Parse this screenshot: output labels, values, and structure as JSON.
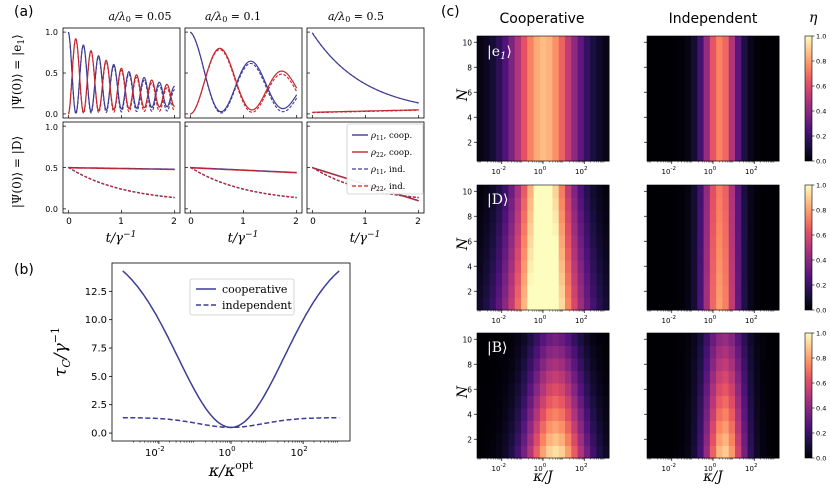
{
  "colors": {
    "cooperative": "#3f3c95",
    "pop22": "#c2262e",
    "axis": "#000000",
    "colormap": [
      "#000004",
      "#1c1044",
      "#4f127b",
      "#812581",
      "#b5367a",
      "#e55064",
      "#fb8761",
      "#fec287",
      "#fcfdbf"
    ]
  },
  "panel_labels": {
    "a": "(a)",
    "b": "(b)",
    "c": "(c)"
  },
  "chart_data": [
    {
      "id": "a",
      "type": "line",
      "columns": [
        {
          "title": "a/λ0 = 0.05",
          "title_italic": "a/λ",
          "title_sub": "0",
          "title_rest": " = 0.05"
        },
        {
          "title": "a/λ0 = 0.1",
          "title_italic": "a/λ",
          "title_sub": "0",
          "title_rest": " = 0.1"
        },
        {
          "title": "a/λ0 = 0.5",
          "title_italic": "a/λ",
          "title_sub": "0",
          "title_rest": " = 0.5"
        }
      ],
      "rows": [
        {
          "ylabel": "|Ψ(0)⟩ = |e1⟩",
          "ylabel_main": "|Ψ(0)⟩ = |e",
          "ylabel_sub": "1",
          "ylabel_end": "⟩"
        },
        {
          "ylabel": "|Ψ(0)⟩ = |D⟩",
          "ylabel_main": "|Ψ(0)⟩ = |D⟩",
          "ylabel_sub": "",
          "ylabel_end": ""
        }
      ],
      "xlabel": "t/γ⁻¹",
      "xlabel_main": "t/γ",
      "xlabel_sup": "−1",
      "xticks": [
        "0",
        "1",
        "2"
      ],
      "xlim": [
        -0.1,
        2.1
      ],
      "ylim": [
        -0.05,
        1.05
      ],
      "yticks": [
        "0.0",
        "0.5",
        "1.0"
      ],
      "legend": [
        {
          "label": "ρ11, coop.",
          "sym": "ρ",
          "sub": "11",
          "rest": ", coop.",
          "style": "solid",
          "color": "#3f3c95"
        },
        {
          "label": "ρ22, coop.",
          "sym": "ρ",
          "sub": "22",
          "rest": ", coop.",
          "style": "solid",
          "color": "#c2262e"
        },
        {
          "label": "ρ11, ind.",
          "sym": "ρ",
          "sub": "11",
          "rest": ", ind.",
          "style": "dashed",
          "color": "#3f3c95"
        },
        {
          "label": "ρ22, ind.",
          "sym": "ρ",
          "sub": "22",
          "rest": ", ind.",
          "style": "dashed",
          "color": "#c2262e"
        }
      ],
      "model": {
        "r0": [
          {
            "kind": "osc",
            "decay_c": 0.7,
            "decay_i": 0.68,
            "omega": 22
          },
          {
            "kind": "osc",
            "decay_c": 0.45,
            "decay_i": 0.45,
            "omega": 5.4
          },
          {
            "kind": "monotone",
            "decay": 1.0,
            "rho22": [
              0.02,
              0.05
            ]
          }
        ],
        "r1_coop": [
          [
            0.5,
            0.48
          ],
          [
            0.5,
            0.44
          ],
          [
            0.5,
            0.1
          ]
        ],
        "r1_ind": [
          0.5,
          0.07
        ]
      }
    },
    {
      "id": "b",
      "type": "line",
      "xlabel": "κ/κopt",
      "xlabel_main": "κ/κ",
      "xlabel_sup": "opt",
      "ylabel": "τC/γ⁻¹",
      "ylabel_main": "τ",
      "ylabel_sub": "C",
      "ylabel_rest": "/γ",
      "ylabel_sup": "−1",
      "x_log_range": [
        -3,
        3
      ],
      "xticks": [
        {
          "exp": -2,
          "label": "10",
          "sup": "-2"
        },
        {
          "exp": 0,
          "label": "10",
          "sup": "0"
        },
        {
          "exp": 2,
          "label": "10",
          "sup": "2"
        }
      ],
      "ylim": [
        -0.7,
        15.0
      ],
      "yticks": [
        "0.0",
        "2.5",
        "5.0",
        "7.5",
        "10.0",
        "12.5"
      ],
      "series": [
        {
          "name": "cooperative",
          "style": "solid",
          "floor": 0.5,
          "peak": 14.3,
          "width": 1.55
        },
        {
          "name": "independent",
          "style": "dashed",
          "floor": 0.5,
          "peak": 1.35,
          "width": 0.95
        }
      ]
    },
    {
      "id": "c",
      "type": "heatmap",
      "col_titles": [
        "Cooperative",
        "Independent"
      ],
      "rows": [
        {
          "label": "|e1⟩",
          "label_main": "|e",
          "label_sub": "1",
          "label_end": "⟩"
        },
        {
          "label": "|D⟩",
          "label_main": "|D⟩",
          "label_sub": "",
          "label_end": ""
        },
        {
          "label": "|B⟩",
          "label_main": "|B⟩",
          "label_sub": "",
          "label_end": ""
        }
      ],
      "ylabel": "N",
      "xlabel": "κ/J",
      "ny": 10,
      "nx": 21,
      "x_log_range": [
        -3.2,
        3.2
      ],
      "yticks": [
        "2",
        "4",
        "6",
        "8",
        "10"
      ],
      "xticks": [
        {
          "exp": -2,
          "label": "10",
          "sup": "-2"
        },
        {
          "exp": 0,
          "label": "10",
          "sup": "0"
        },
        {
          "exp": 2,
          "label": "10",
          "sup": "2"
        }
      ],
      "colorbar": {
        "label": "η",
        "range": [
          0.0,
          1.0
        ],
        "ticks": [
          "0.0",
          "0.2",
          "0.4",
          "0.6",
          "0.8",
          "1.0"
        ]
      },
      "params": [
        [
          {
            "peak": 0.86,
            "mu": 0.05,
            "w0": 1.2,
            "wN": 0.0,
            "p": 0
          },
          {
            "peak": 0.74,
            "mu": 0.35,
            "w0": 0.62,
            "wN": 0.0,
            "p": 0
          }
        ],
        [
          {
            "peak": 1.0,
            "mu": 0.05,
            "w0": 1.35,
            "wN": -0.1,
            "p": 0.35
          },
          {
            "peak": 0.8,
            "mu": 0.35,
            "w0": 0.62,
            "wN": 0.0,
            "p": 0.25
          }
        ],
        [
          {
            "peak": 0.94,
            "mu": 0.6,
            "w0": 1.05,
            "wN": -0.08,
            "p": 1.7
          },
          {
            "peak": 0.9,
            "mu": 0.55,
            "w0": 0.7,
            "wN": 0.0,
            "p": 1.4
          }
        ]
      ]
    }
  ]
}
